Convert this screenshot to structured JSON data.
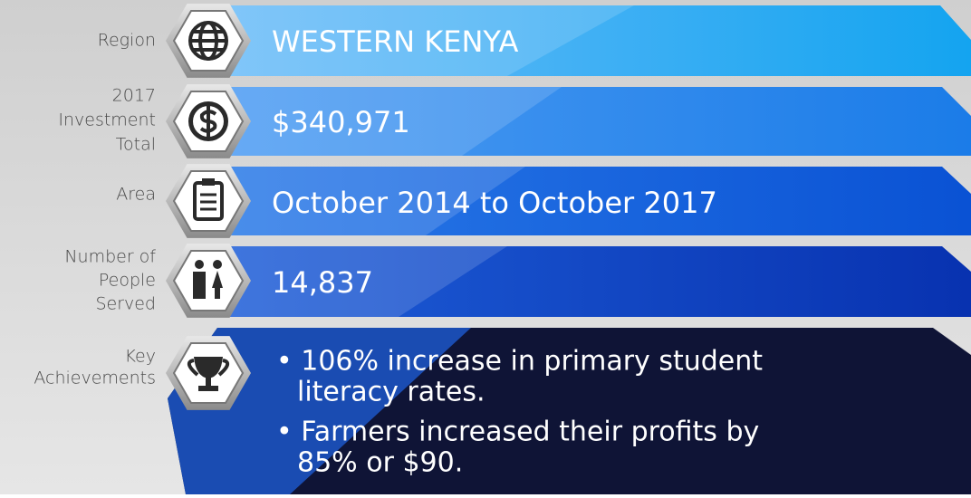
{
  "rows": [
    {
      "label": [
        "Region"
      ],
      "value": "WESTERN KENYA"
    },
    {
      "label": [
        "2017",
        "Investment",
        "Total"
      ],
      "value": "$340,971"
    },
    {
      "label": [
        "Area"
      ],
      "value": "October 2014 to October 2017"
    },
    {
      "label": [
        "Number of",
        "People",
        "Served"
      ],
      "value": "14,837"
    }
  ],
  "achievements": {
    "label": [
      "Key",
      "Achievements"
    ],
    "items": [
      [
        "• 106% increase in primary student",
        "literacy rates."
      ],
      [
        "• Farmers increased their profits by",
        "85% or $90."
      ]
    ]
  }
}
